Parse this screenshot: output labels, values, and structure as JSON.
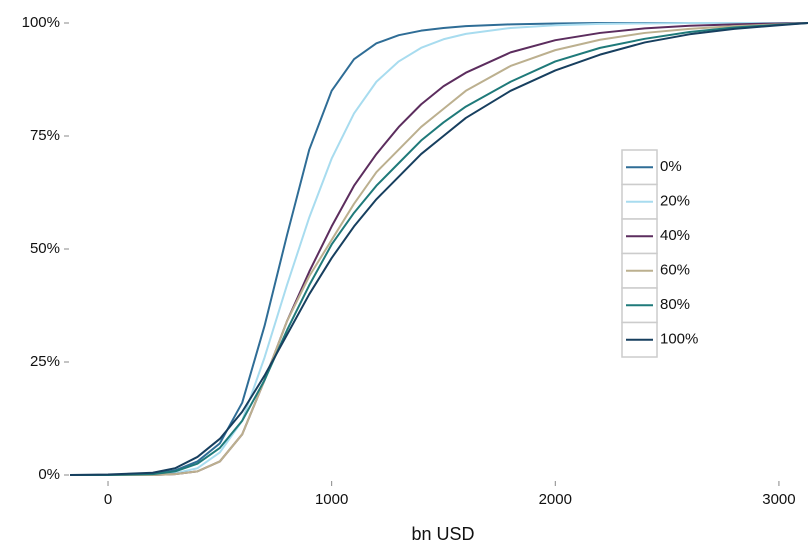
{
  "chart_data": {
    "type": "line",
    "x_label": "bn USD",
    "x": [
      -170,
      0,
      200,
      300,
      400,
      500,
      600,
      700,
      800,
      900,
      1000,
      1100,
      1200,
      1300,
      1400,
      1500,
      1600,
      1800,
      2000,
      2200,
      2400,
      2600,
      2800,
      3000,
      3130
    ],
    "series": [
      {
        "name": "0%",
        "color": "#2f6d96",
        "values": [
          0,
          0,
          0.3,
          1,
          3,
          7,
          16,
          33,
          53,
          72,
          85,
          92,
          95.5,
          97.3,
          98.3,
          98.9,
          99.3,
          99.7,
          99.9,
          100,
          100,
          100,
          100,
          100,
          100
        ]
      },
      {
        "name": "20%",
        "color": "#a8dcef",
        "values": [
          0,
          0,
          0.1,
          0.4,
          1.5,
          5,
          12,
          26,
          42,
          57,
          70,
          80,
          87,
          91.5,
          94.5,
          96.4,
          97.6,
          98.9,
          99.5,
          99.8,
          99.9,
          100,
          100,
          100,
          100
        ]
      },
      {
        "name": "40%",
        "color": "#5c2d5e",
        "values": [
          0,
          0,
          0,
          0.2,
          0.8,
          3,
          9,
          21,
          34,
          45,
          55,
          64,
          71,
          77,
          82,
          86,
          89,
          93.5,
          96.2,
          97.8,
          98.8,
          99.4,
          99.7,
          99.9,
          100
        ]
      },
      {
        "name": "60%",
        "color": "#bcb08f",
        "values": [
          0,
          0,
          0,
          0.2,
          0.8,
          3,
          9,
          21,
          34,
          44,
          52,
          60,
          67,
          72,
          77,
          81,
          85,
          90.5,
          94,
          96.3,
          97.8,
          98.7,
          99.3,
          99.7,
          100
        ]
      },
      {
        "name": "80%",
        "color": "#1f7a7a",
        "values": [
          0,
          0,
          0.2,
          0.8,
          2.5,
          6,
          12,
          21,
          32,
          42,
          51,
          58,
          64,
          69,
          74,
          78,
          81.5,
          87,
          91.5,
          94.5,
          96.5,
          98,
          99,
          99.6,
          100
        ]
      },
      {
        "name": "100%",
        "color": "#173f5f",
        "values": [
          0,
          0.1,
          0.5,
          1.5,
          4,
          8,
          14,
          22,
          31,
          40,
          48,
          55,
          61,
          66,
          71,
          75,
          79,
          85,
          89.5,
          93,
          95.7,
          97.5,
          98.7,
          99.5,
          100
        ]
      }
    ],
    "xlim": [
      -170,
      3130
    ],
    "xticks": [
      0,
      1000,
      2000,
      3000
    ],
    "ylim": [
      0,
      100
    ],
    "yticks": [
      {
        "value": 0,
        "label": "0%"
      },
      {
        "value": 25,
        "label": "25%"
      },
      {
        "value": 50,
        "label": "50%"
      },
      {
        "value": 75,
        "label": "75%"
      },
      {
        "value": 100,
        "label": "100%"
      }
    ],
    "legend": "right"
  }
}
